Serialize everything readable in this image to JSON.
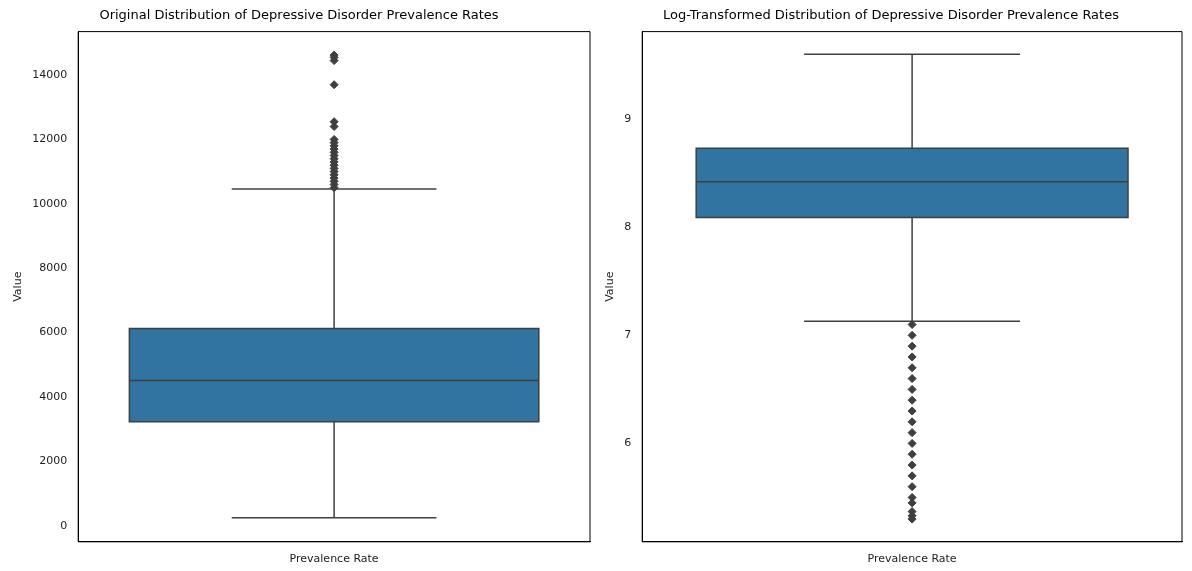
{
  "chart_data": [
    {
      "type": "box",
      "title": "Original Distribution of Depressive Disorder Prevalence Rates",
      "ylabel": "Value",
      "categories": [
        "Prevalence Rate"
      ],
      "color": "#3274a1",
      "marker": "diamond",
      "grid": false,
      "ylim": [
        -500,
        15350
      ],
      "yticks": [
        0,
        2000,
        4000,
        6000,
        8000,
        10000,
        12000,
        14000
      ],
      "boxes": [
        {
          "low": 245,
          "q1": 3230,
          "median": 4510,
          "q3": 6130,
          "high": 10460,
          "outliers": [
            10500,
            10600,
            10700,
            10800,
            10900,
            11000,
            11100,
            11200,
            11300,
            11400,
            11500,
            11600,
            11700,
            11800,
            11900,
            12000,
            12400,
            12550,
            13700,
            14450,
            14550,
            14620
          ]
        }
      ]
    },
    {
      "type": "box",
      "title": "Log-Transformed Distribution of Depressive Disorder Prevalence Rates",
      "ylabel": "Value",
      "categories": [
        "Prevalence Rate"
      ],
      "color": "#3274a1",
      "marker": "diamond",
      "grid": false,
      "ylim": [
        5.09,
        9.81
      ],
      "yticks": [
        6,
        7,
        8,
        9
      ],
      "boxes": [
        {
          "low": 7.13,
          "q1": 8.09,
          "median": 8.42,
          "q3": 8.73,
          "high": 9.6,
          "outliers": [
            7.1,
            7.0,
            6.9,
            6.8,
            6.7,
            6.6,
            6.5,
            6.4,
            6.3,
            6.2,
            6.1,
            6.0,
            5.9,
            5.8,
            5.7,
            5.6,
            5.5,
            5.45,
            5.37,
            5.33,
            5.3
          ]
        }
      ]
    }
  ]
}
